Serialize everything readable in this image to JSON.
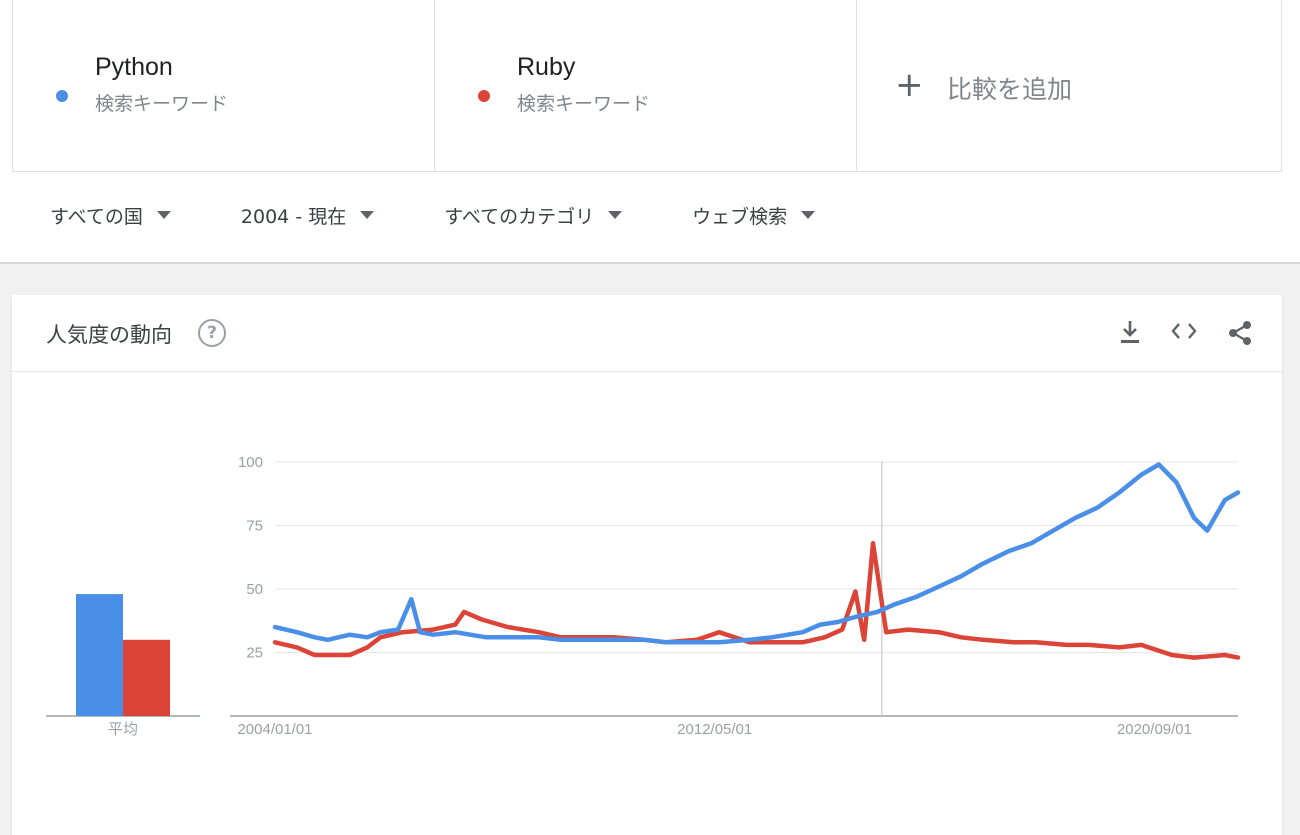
{
  "terms": [
    {
      "name": "Python",
      "sub": "検索キーワード",
      "color": "#4a8fe7"
    },
    {
      "name": "Ruby",
      "sub": "検索キーワード",
      "color": "#db4437"
    }
  ],
  "add_compare": {
    "plus": "+",
    "label": "比較を追加"
  },
  "filters": [
    {
      "label": "すべての国"
    },
    {
      "label": "2004 - 現在"
    },
    {
      "label": "すべてのカテゴリ"
    },
    {
      "label": "ウェブ検索"
    }
  ],
  "panel": {
    "title": "人気度の動向",
    "help": "?",
    "icons": [
      "download-icon",
      "embed-code-icon",
      "share-icon"
    ]
  },
  "chart_data": {
    "type": "line",
    "title": "",
    "yticks": [
      100,
      75,
      50,
      25
    ],
    "ylim": [
      0,
      100
    ],
    "xticks": [
      "2004/01/01",
      "2012/05/01",
      "2020/09/01"
    ],
    "xrange": [
      "2004/01/01",
      "2022/04/01"
    ],
    "marker_date": "2015/07/01",
    "avg_label": "平均",
    "averages": [
      {
        "name": "Python",
        "value": 48
      },
      {
        "name": "Ruby",
        "value": 30
      }
    ],
    "series": [
      {
        "name": "Python",
        "color": "#4a8fe7",
        "points": [
          [
            "2004/01",
            35
          ],
          [
            "2004/06",
            33
          ],
          [
            "2004/10",
            31
          ],
          [
            "2005/01",
            30
          ],
          [
            "2005/06",
            32
          ],
          [
            "2005/10",
            31
          ],
          [
            "2006/01",
            33
          ],
          [
            "2006/05",
            34
          ],
          [
            "2006/08",
            46
          ],
          [
            "2006/10",
            33
          ],
          [
            "2007/01",
            32
          ],
          [
            "2007/06",
            33
          ],
          [
            "2008/01",
            31
          ],
          [
            "2008/06",
            31
          ],
          [
            "2009/01",
            31
          ],
          [
            "2009/06",
            30
          ],
          [
            "2010/01",
            30
          ],
          [
            "2010/06",
            30
          ],
          [
            "2011/01",
            30
          ],
          [
            "2011/06",
            29
          ],
          [
            "2012/01",
            29
          ],
          [
            "2012/06",
            29
          ],
          [
            "2013/01",
            30
          ],
          [
            "2013/06",
            31
          ],
          [
            "2014/01",
            33
          ],
          [
            "2014/05",
            36
          ],
          [
            "2014/09",
            37
          ],
          [
            "2015/01",
            39
          ],
          [
            "2015/06",
            41
          ],
          [
            "2015/10",
            44
          ],
          [
            "2016/03",
            47
          ],
          [
            "2016/08",
            51
          ],
          [
            "2017/01",
            55
          ],
          [
            "2017/06",
            60
          ],
          [
            "2017/12",
            65
          ],
          [
            "2018/05",
            68
          ],
          [
            "2018/10",
            73
          ],
          [
            "2019/03",
            78
          ],
          [
            "2019/08",
            82
          ],
          [
            "2020/01",
            88
          ],
          [
            "2020/06",
            95
          ],
          [
            "2020/10",
            99
          ],
          [
            "2021/02",
            92
          ],
          [
            "2021/06",
            78
          ],
          [
            "2021/09",
            73
          ],
          [
            "2022/01",
            85
          ],
          [
            "2022/04",
            88
          ]
        ]
      },
      {
        "name": "Ruby",
        "color": "#db4437",
        "points": [
          [
            "2004/01",
            29
          ],
          [
            "2004/06",
            27
          ],
          [
            "2004/10",
            24
          ],
          [
            "2005/01",
            24
          ],
          [
            "2005/06",
            24
          ],
          [
            "2005/10",
            27
          ],
          [
            "2006/01",
            31
          ],
          [
            "2006/06",
            33
          ],
          [
            "2007/01",
            34
          ],
          [
            "2007/06",
            36
          ],
          [
            "2007/08",
            41
          ],
          [
            "2007/12",
            38
          ],
          [
            "2008/06",
            35
          ],
          [
            "2009/01",
            33
          ],
          [
            "2009/06",
            31
          ],
          [
            "2010/01",
            31
          ],
          [
            "2010/06",
            31
          ],
          [
            "2011/01",
            30
          ],
          [
            "2011/06",
            29
          ],
          [
            "2012/01",
            30
          ],
          [
            "2012/06",
            33
          ],
          [
            "2013/01",
            29
          ],
          [
            "2013/06",
            29
          ],
          [
            "2014/01",
            29
          ],
          [
            "2014/06",
            31
          ],
          [
            "2014/10",
            34
          ],
          [
            "2015/01",
            49
          ],
          [
            "2015/03",
            30
          ],
          [
            "2015/05",
            68
          ],
          [
            "2015/08",
            33
          ],
          [
            "2016/01",
            34
          ],
          [
            "2016/08",
            33
          ],
          [
            "2017/01",
            31
          ],
          [
            "2017/06",
            30
          ],
          [
            "2018/01",
            29
          ],
          [
            "2018/06",
            29
          ],
          [
            "2019/01",
            28
          ],
          [
            "2019/06",
            28
          ],
          [
            "2020/01",
            27
          ],
          [
            "2020/06",
            28
          ],
          [
            "2021/01",
            24
          ],
          [
            "2021/06",
            23
          ],
          [
            "2022/01",
            24
          ],
          [
            "2022/04",
            23
          ]
        ]
      }
    ]
  }
}
